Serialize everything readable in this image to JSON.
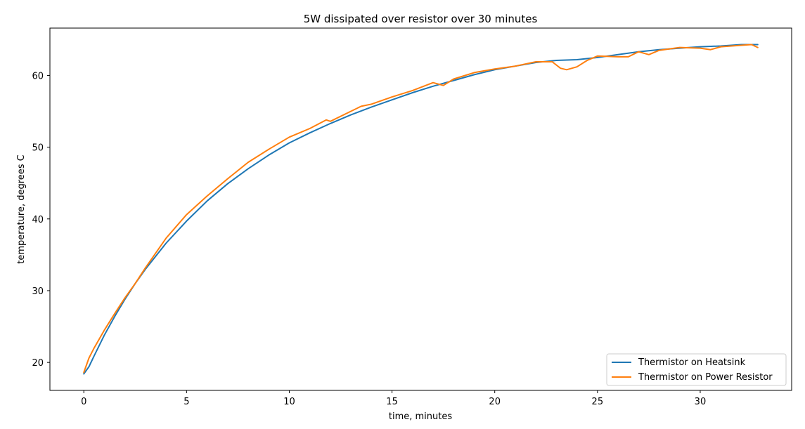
{
  "chart_data": {
    "type": "line",
    "title": "5W dissipated over resistor over 30 minutes",
    "xlabel": "time, minutes",
    "ylabel": "temperature, degrees C",
    "xlim": [
      -1.65,
      34.45
    ],
    "ylim": [
      16.1,
      66.6
    ],
    "x_ticks": [
      0,
      5,
      10,
      15,
      20,
      25,
      30
    ],
    "y_ticks": [
      20,
      30,
      40,
      50,
      60
    ],
    "grid": false,
    "legend_position": "lower-right",
    "series": [
      {
        "name": "Thermistor on Heatsink",
        "color": "#1f77b4",
        "x": [
          0,
          0.25,
          0.5,
          1,
          1.5,
          2,
          2.5,
          3,
          4,
          5,
          6,
          7,
          8,
          9,
          10,
          11,
          12,
          13,
          14,
          15,
          16,
          17,
          18,
          19,
          20,
          21,
          22,
          23,
          24,
          25,
          26,
          27,
          28,
          29,
          30,
          31,
          32,
          32.8
        ],
        "y": [
          18.4,
          19.4,
          20.9,
          23.8,
          26.4,
          28.8,
          31.0,
          33.0,
          36.6,
          39.7,
          42.5,
          44.9,
          47.0,
          48.9,
          50.6,
          52.0,
          53.3,
          54.5,
          55.6,
          56.6,
          57.6,
          58.5,
          59.3,
          60.1,
          60.8,
          61.3,
          61.8,
          62.1,
          62.2,
          62.5,
          62.9,
          63.3,
          63.6,
          63.8,
          64.0,
          64.1,
          64.3,
          64.3
        ]
      },
      {
        "name": "Thermistor on Power Resistor",
        "color": "#ff7f0e",
        "x": [
          0,
          0.25,
          0.5,
          1,
          1.5,
          2,
          2.5,
          3,
          4,
          5,
          6,
          7,
          8,
          9,
          10,
          11,
          11.8,
          12,
          13,
          13.5,
          14,
          15,
          16,
          17,
          17.5,
          18,
          19,
          20,
          21,
          22,
          22.8,
          23.2,
          23.5,
          24,
          24.5,
          25,
          26,
          26.5,
          27,
          27.5,
          28,
          29,
          30,
          30.5,
          31,
          32,
          32.5,
          32.8
        ],
        "y": [
          18.6,
          20.6,
          22.0,
          24.5,
          26.8,
          29.0,
          31.0,
          33.2,
          37.3,
          40.6,
          43.2,
          45.6,
          47.9,
          49.7,
          51.4,
          52.6,
          53.8,
          53.6,
          55.0,
          55.7,
          56.0,
          57.0,
          57.9,
          59.0,
          58.6,
          59.5,
          60.4,
          60.9,
          61.3,
          61.9,
          61.9,
          61.0,
          60.8,
          61.2,
          62.1,
          62.7,
          62.6,
          62.6,
          63.3,
          62.9,
          63.5,
          63.9,
          63.8,
          63.6,
          64.0,
          64.2,
          64.3,
          63.9
        ]
      }
    ]
  }
}
